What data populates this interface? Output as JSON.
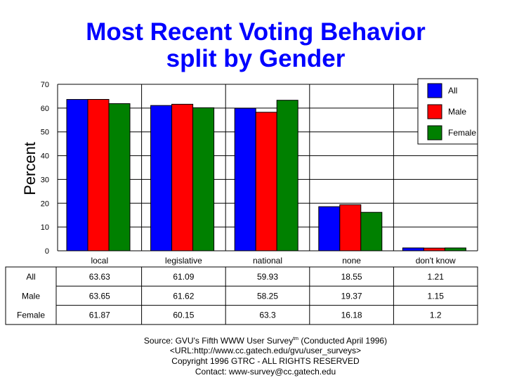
{
  "chart_data": {
    "type": "bar",
    "title": "Most Recent Voting Behavior",
    "subtitle": "split by Gender",
    "ylabel": "Percent",
    "xlabel": "",
    "ylim": [
      0,
      70
    ],
    "yticks": [
      0,
      10,
      20,
      30,
      40,
      50,
      60,
      70
    ],
    "grid": true,
    "legend_position": "top-right",
    "categories": [
      "local",
      "legislative",
      "national",
      "none",
      "don't know"
    ],
    "series": [
      {
        "name": "All",
        "color": "#0000ff",
        "values": [
          63.63,
          61.09,
          59.93,
          18.55,
          1.21
        ],
        "labels": [
          "63.63",
          "61.09",
          "59.93",
          "18.55",
          "1.21"
        ]
      },
      {
        "name": "Male",
        "color": "#ff0000",
        "values": [
          63.65,
          61.62,
          58.25,
          19.37,
          1.15
        ],
        "labels": [
          "63.65",
          "61.62",
          "58.25",
          "19.37",
          "1.15"
        ]
      },
      {
        "name": "Female",
        "color": "#008000",
        "values": [
          61.87,
          60.15,
          63.3,
          16.18,
          1.2
        ],
        "labels": [
          "61.87",
          "60.15",
          "63.3",
          "16.18",
          "1.2"
        ]
      }
    ]
  },
  "footer": {
    "source": "Source: GVU's Fifth WWW User Survey",
    "tm": "tm",
    "conducted": "(Conducted April 1996)",
    "url": "<URL:http://www.cc.gatech.edu/gvu/user_surveys>",
    "copyright": "Copyright 1996 GTRC -  ALL RIGHTS RESERVED",
    "contact": "Contact: www-survey@cc.gatech.edu"
  }
}
